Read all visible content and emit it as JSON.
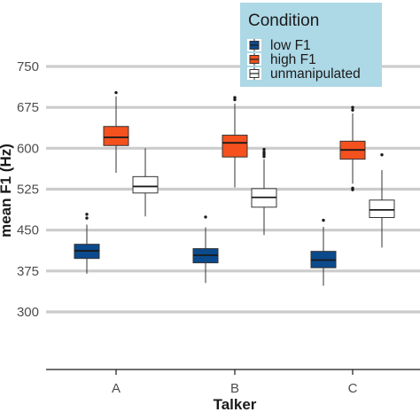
{
  "chart_data": {
    "type": "boxplot",
    "xlabel": "Talker",
    "ylabel": "mean F1 (Hz)",
    "categories": [
      "A",
      "B",
      "C"
    ],
    "ylim": [
      225,
      800
    ],
    "yticks": [
      300,
      375,
      450,
      525,
      600,
      675,
      750
    ],
    "grid": true,
    "legend": {
      "title": "Condition",
      "position": "top-right",
      "background": "#add8e6"
    },
    "series": [
      {
        "name": "low F1",
        "color": "#0b4a8c",
        "boxes": [
          {
            "whisker_low": 370,
            "q1": 398,
            "median": 412,
            "q3": 424,
            "whisker_high": 460,
            "outliers": [
              472,
              479
            ]
          },
          {
            "whisker_low": 353,
            "q1": 390,
            "median": 404,
            "q3": 416,
            "whisker_high": 455,
            "outliers": [
              474
            ]
          },
          {
            "whisker_low": 348,
            "q1": 381,
            "median": 395,
            "q3": 411,
            "whisker_high": 456,
            "outliers": [
              468
            ]
          }
        ]
      },
      {
        "name": "high F1",
        "color": "#f4511e",
        "boxes": [
          {
            "whisker_low": 555,
            "q1": 605,
            "median": 620,
            "q3": 640,
            "whisker_high": 695,
            "outliers": [
              702
            ]
          },
          {
            "whisker_low": 528,
            "q1": 584,
            "median": 610,
            "q3": 624,
            "whisker_high": 682,
            "outliers": [
              689,
              693
            ]
          },
          {
            "whisker_low": 535,
            "q1": 580,
            "median": 597,
            "q3": 613,
            "whisker_high": 664,
            "outliers": [
              670,
              675,
              524,
              527
            ]
          }
        ]
      },
      {
        "name": "unmanipulated",
        "color": "#ffffff",
        "boxes": [
          {
            "whisker_low": 475,
            "q1": 518,
            "median": 530,
            "q3": 548,
            "whisker_high": 600,
            "outliers": []
          },
          {
            "whisker_low": 441,
            "q1": 492,
            "median": 510,
            "q3": 526,
            "whisker_high": 580,
            "outliers": [
              585,
              589,
              593,
              598
            ]
          },
          {
            "whisker_low": 418,
            "q1": 473,
            "median": 487,
            "q3": 505,
            "whisker_high": 560,
            "outliers": [
              588
            ]
          }
        ]
      }
    ]
  }
}
